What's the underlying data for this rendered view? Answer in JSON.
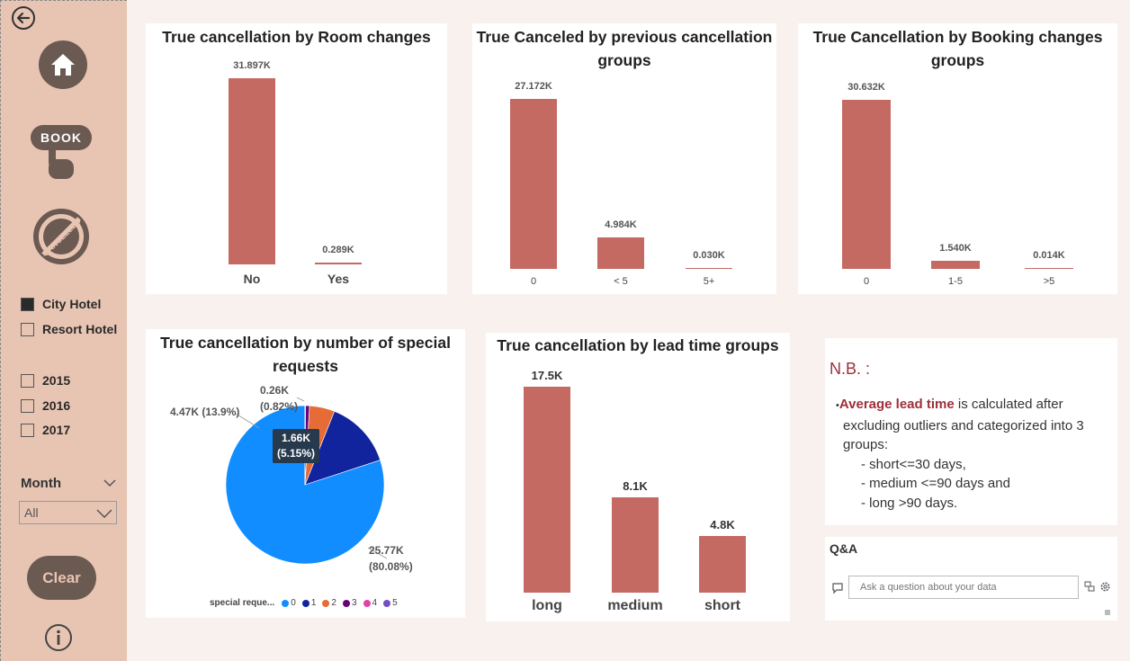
{
  "sidebar": {
    "hotels": [
      {
        "label": "City Hotel",
        "checked": true
      },
      {
        "label": "Resort Hotel",
        "checked": false
      }
    ],
    "years": [
      {
        "label": "2015",
        "checked": false
      },
      {
        "label": "2016",
        "checked": false
      },
      {
        "label": "2017",
        "checked": false
      }
    ],
    "month_title": "Month",
    "month_value": "All",
    "clear_label": "Clear",
    "book_label": "BOOK",
    "cancelled_label": "CANCELLED"
  },
  "cards": {
    "room_changes": {
      "title": "True cancellation by Room changes"
    },
    "prev_cancel": {
      "title_line1": "True Canceled by previous cancellation",
      "title_line2": "groups"
    },
    "booking_changes": {
      "title_line1": "True Cancellation by Booking changes",
      "title_line2": "groups"
    },
    "special_requests": {
      "title_line1": "True cancellation by number of special",
      "title_line2": "requests"
    },
    "lead_time": {
      "title": "True cancellation by lead time groups"
    }
  },
  "chart_data": [
    {
      "type": "bar",
      "title": "True cancellation by Room changes",
      "categories": [
        "No",
        "Yes"
      ],
      "values": [
        31.897,
        0.289
      ],
      "data_labels": [
        "31.897K",
        "0.289K"
      ],
      "unit": "K"
    },
    {
      "type": "bar",
      "title": "True Canceled by previous cancellation groups",
      "categories": [
        "0",
        "< 5",
        "5+"
      ],
      "values": [
        27.172,
        4.984,
        0.03
      ],
      "data_labels": [
        "27.172K",
        "4.984K",
        "0.030K"
      ],
      "unit": "K"
    },
    {
      "type": "bar",
      "title": "True Cancellation by Booking changes groups",
      "categories": [
        "0",
        "1-5",
        ">5"
      ],
      "values": [
        30.632,
        1.54,
        0.014
      ],
      "data_labels": [
        "30.632K",
        "1.540K",
        "0.014K"
      ],
      "unit": "K"
    },
    {
      "type": "pie",
      "title": "True cancellation by number of special requests",
      "legend_title": "special reque...",
      "categories": [
        "0",
        "1",
        "2",
        "3",
        "4",
        "5"
      ],
      "values": [
        25.77,
        4.47,
        1.66,
        0.26,
        0.03,
        0.003
      ],
      "data_labels": [
        "25.77K (80.08%)",
        "4.47K (13.9%)",
        "1.66K (5.15%)",
        "0.26K (0.82%)",
        "",
        ""
      ],
      "colors": [
        "#118dff",
        "#12239e",
        "#e66c37",
        "#6b007b",
        "#e044a7",
        "#744ec2"
      ]
    },
    {
      "type": "bar",
      "title": "True cancellation by lead time groups",
      "categories": [
        "long",
        "medium",
        "short"
      ],
      "values": [
        17.5,
        8.1,
        4.8
      ],
      "data_labels": [
        "17.5K",
        "8.1K",
        "4.8K"
      ],
      "unit": "K"
    }
  ],
  "pie_labels": {
    "slice0_line1": "25.77K",
    "slice0_line2": "(80.08%)",
    "slice1": "4.47K (13.9%)",
    "slice2_line1": "1.66K",
    "slice2_line2": "(5.15%)",
    "slice3_line1": "0.26K",
    "slice3_line2": "(0.82%)"
  },
  "notes": {
    "heading": "N.B. :",
    "highlight": "Average lead time",
    "text1": " is calculated after",
    "text2": "excluding outliers and categorized into 3",
    "text3": "groups:",
    "items": [
      "- short<=30 days,",
      "- medium <=90 days and",
      "- long >90 days."
    ]
  },
  "qa": {
    "title": "Q&A",
    "placeholder": "Ask a question about your data"
  },
  "colors": {
    "bar": "#c46a62",
    "sidebar": "#e8c5b3",
    "background": "#f9f1ed",
    "nb_heading": "#9e2f3a"
  }
}
